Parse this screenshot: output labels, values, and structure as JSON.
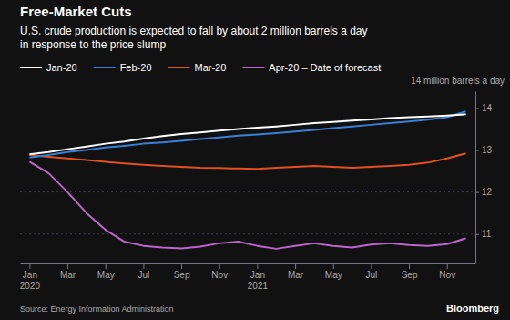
{
  "chart_data": {
    "type": "line",
    "title": "Free-Market Cuts",
    "subtitle": "U.S. crude production is expected to fall by about 2 million barrels a day\nin response to the price slump",
    "ylabel": "14 million barrels a day",
    "annotations": [
      "Source: Energy Information Administration",
      "Bloomberg"
    ],
    "categories": [
      "Jan\n2020",
      null,
      "Mar",
      null,
      "May",
      null,
      "Jul",
      null,
      "Sep",
      null,
      "Nov",
      null,
      "Jan\n2021",
      null,
      "Mar",
      null,
      "May",
      null,
      "Jul",
      null,
      "Sep",
      null,
      "Nov",
      null
    ],
    "series": [
      {
        "name": "Jan-20",
        "color": "#ffffff",
        "values": [
          12.9,
          12.95,
          13.02,
          13.08,
          13.15,
          13.2,
          13.27,
          13.33,
          13.38,
          13.42,
          13.46,
          13.5,
          13.53,
          13.56,
          13.6,
          13.64,
          13.67,
          13.7,
          13.73,
          13.76,
          13.78,
          13.8,
          13.82,
          13.85
        ]
      },
      {
        "name": "Feb-20",
        "color": "#3a7fd5",
        "values": [
          12.82,
          12.88,
          12.95,
          13.0,
          13.06,
          13.1,
          13.15,
          13.18,
          13.22,
          13.26,
          13.3,
          13.34,
          13.37,
          13.4,
          13.44,
          13.48,
          13.52,
          13.56,
          13.6,
          13.64,
          13.68,
          13.72,
          13.78,
          13.92
        ]
      },
      {
        "name": "Mar-20",
        "color": "#e05020",
        "values": [
          12.88,
          12.84,
          12.8,
          12.76,
          12.72,
          12.68,
          12.65,
          12.62,
          12.6,
          12.58,
          12.57,
          12.56,
          12.55,
          12.58,
          12.6,
          12.62,
          12.6,
          12.58,
          12.6,
          12.62,
          12.65,
          12.7,
          12.8,
          12.92
        ]
      },
      {
        "name": "Apr-20 – Date of forecast",
        "color": "#bb66cc",
        "values": [
          12.72,
          12.45,
          12.0,
          11.5,
          11.1,
          10.82,
          10.72,
          10.68,
          10.66,
          10.7,
          10.78,
          10.82,
          10.72,
          10.65,
          10.72,
          10.78,
          10.72,
          10.68,
          10.75,
          10.78,
          10.74,
          10.72,
          10.76,
          10.9
        ]
      }
    ],
    "ylim": [
      10.3,
      14.4
    ],
    "yticks": [
      11,
      12,
      13,
      14
    ],
    "grid": true
  }
}
